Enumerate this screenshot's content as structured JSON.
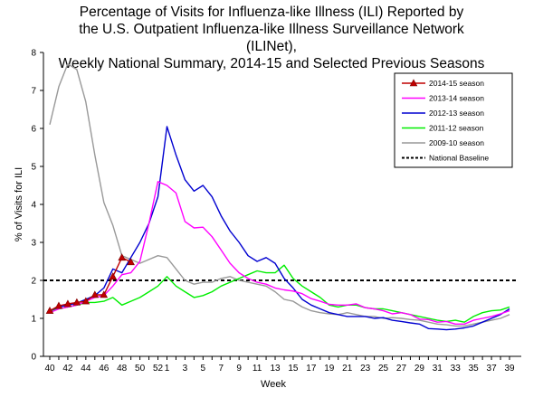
{
  "chart_data": {
    "type": "line",
    "title_lines": [
      "Percentage of Visits for Influenza-like Illness (ILI) Reported by",
      "the U.S. Outpatient Influenza-like Illness Surveillance Network (ILINet),",
      "Weekly National Summary, 2014-15 and Selected Previous Seasons"
    ],
    "xlabel": "Week",
    "ylabel": "% of Visits for ILI",
    "ylim": [
      0,
      8
    ],
    "yticks": [
      0,
      1,
      2,
      3,
      4,
      5,
      6,
      7,
      8
    ],
    "xticks": [
      "40",
      "42",
      "44",
      "46",
      "48",
      "50",
      "52",
      "1",
      "3",
      "5",
      "7",
      "9",
      "11",
      "13",
      "15",
      "17",
      "19",
      "21",
      "23",
      "25",
      "27",
      "29",
      "31",
      "33",
      "35",
      "37",
      "39"
    ],
    "weeks": [
      "40",
      "41",
      "42",
      "43",
      "44",
      "45",
      "46",
      "47",
      "48",
      "49",
      "50",
      "51",
      "52",
      "1",
      "2",
      "3",
      "4",
      "5",
      "6",
      "7",
      "8",
      "9",
      "10",
      "11",
      "12",
      "13",
      "14",
      "15",
      "16",
      "17",
      "18",
      "19",
      "20",
      "21",
      "22",
      "23",
      "24",
      "25",
      "26",
      "27",
      "28",
      "29",
      "30",
      "31",
      "32",
      "33",
      "34",
      "35",
      "36",
      "37",
      "38",
      "39"
    ],
    "grid": false,
    "legend_position": "top-right",
    "baseline": {
      "name": "National Baseline",
      "value": 2.0,
      "color": "#000000"
    },
    "series": [
      {
        "name": "2014-15 season",
        "color": "#c00000",
        "marker": "triangle",
        "values": [
          1.2,
          1.33,
          1.38,
          1.42,
          1.45,
          1.62,
          1.62,
          2.1,
          2.6,
          2.48
        ]
      },
      {
        "name": "2013-14 season",
        "color": "#ff00ff",
        "values": [
          1.15,
          1.25,
          1.3,
          1.35,
          1.45,
          1.55,
          1.6,
          1.85,
          2.15,
          2.2,
          2.5,
          3.5,
          4.6,
          4.5,
          4.3,
          3.55,
          3.38,
          3.4,
          3.15,
          2.8,
          2.45,
          2.2,
          2.05,
          1.95,
          1.9,
          1.8,
          1.75,
          1.72,
          1.65,
          1.52,
          1.45,
          1.37,
          1.35,
          1.35,
          1.38,
          1.28,
          1.25,
          1.2,
          1.12,
          1.15,
          1.1,
          0.98,
          0.97,
          0.9,
          0.92,
          0.85,
          0.85,
          0.95,
          1.0,
          1.05,
          1.12,
          1.2
        ]
      },
      {
        "name": "2012-13 season",
        "color": "#0000d0",
        "values": [
          1.2,
          1.3,
          1.35,
          1.4,
          1.5,
          1.6,
          1.8,
          2.3,
          2.2,
          2.6,
          3.0,
          3.5,
          4.2,
          6.05,
          5.3,
          4.65,
          4.35,
          4.5,
          4.2,
          3.7,
          3.3,
          3.0,
          2.65,
          2.5,
          2.6,
          2.45,
          2.05,
          1.8,
          1.5,
          1.35,
          1.25,
          1.15,
          1.1,
          1.05,
          1.05,
          1.05,
          1.0,
          1.02,
          0.95,
          0.92,
          0.88,
          0.85,
          0.73,
          0.72,
          0.7,
          0.72,
          0.75,
          0.8,
          0.9,
          1.0,
          1.1,
          1.25
        ]
      },
      {
        "name": "2011-12 season",
        "color": "#00ee00",
        "values": [
          1.2,
          1.25,
          1.3,
          1.35,
          1.42,
          1.42,
          1.45,
          1.55,
          1.35,
          1.45,
          1.55,
          1.7,
          1.85,
          2.1,
          1.85,
          1.7,
          1.55,
          1.6,
          1.7,
          1.85,
          1.95,
          2.05,
          2.15,
          2.25,
          2.2,
          2.2,
          2.4,
          2.05,
          1.85,
          1.7,
          1.55,
          1.35,
          1.3,
          1.35,
          1.35,
          1.28,
          1.25,
          1.25,
          1.2,
          1.15,
          1.1,
          1.05,
          1.0,
          0.95,
          0.92,
          0.95,
          0.9,
          1.05,
          1.15,
          1.2,
          1.22,
          1.3
        ]
      },
      {
        "name": "2009-10 season",
        "color": "#999999",
        "values": [
          6.1,
          7.1,
          7.7,
          7.55,
          6.7,
          5.3,
          4.05,
          3.45,
          2.65,
          2.55,
          2.45,
          2.55,
          2.65,
          2.6,
          2.3,
          2.0,
          1.9,
          1.95,
          1.95,
          2.05,
          2.1,
          2.0,
          1.95,
          1.9,
          1.85,
          1.7,
          1.5,
          1.45,
          1.3,
          1.2,
          1.15,
          1.12,
          1.1,
          1.15,
          1.1,
          1.05,
          1.05,
          1.0,
          1.02,
          1.0,
          0.97,
          0.95,
          0.9,
          0.85,
          0.83,
          0.8,
          0.8,
          0.85,
          0.9,
          0.95,
          1.0,
          1.1
        ]
      }
    ]
  }
}
